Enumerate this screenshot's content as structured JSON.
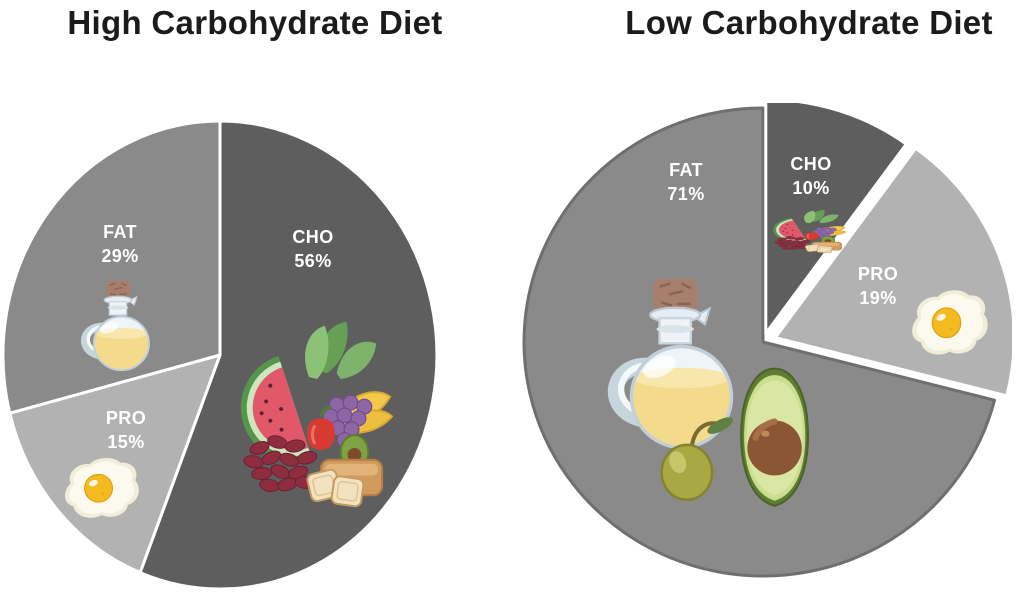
{
  "figure_title": "High vs Low Carbohydrate Diet macronutrient composition",
  "colors": {
    "cho_sector": "#5e5e5e",
    "fat_sector": "#8a8a8a",
    "pro_sector": "#b2b2b2",
    "right_fat_rim": "#6f6f6f",
    "slice_label_text": "#ffffff",
    "title_text": "#1b1b1b",
    "background": "#ffffff"
  },
  "icons": {
    "oil_bottle": "oil-bottle-icon",
    "fried_egg": "fried-egg-icon",
    "fruits": "fruits-vegetables-bread-icon",
    "fats": "oil-olive-avocado-icon"
  },
  "chart_data": [
    {
      "type": "pie",
      "title": "High Carbohydrate Diet",
      "direction": "clockwise",
      "start_angle_deg": 0,
      "legend": "none",
      "slices": [
        {
          "label": "CHO",
          "value": 56,
          "pct": "56%",
          "color": "#5e5e5e",
          "icon": "fruits-vegetables-bread-icon"
        },
        {
          "label": "PRO",
          "value": 15,
          "pct": "15%",
          "color": "#b2b2b2",
          "icon": "fried-egg-icon"
        },
        {
          "label": "FAT",
          "value": 29,
          "pct": "29%",
          "color": "#8a8a8a",
          "icon": "oil-bottle-icon"
        }
      ]
    },
    {
      "type": "pie",
      "title": "Low Carbohydrate Diet",
      "direction": "clockwise",
      "start_angle_deg": 0,
      "legend": "none",
      "slices": [
        {
          "label": "CHO",
          "value": 10,
          "pct": "10%",
          "color": "#5e5e5e",
          "icon": "fruits-vegetables-bread-icon"
        },
        {
          "label": "PRO",
          "value": 19,
          "pct": "19%",
          "color": "#b2b2b2",
          "icon": "fried-egg-icon"
        },
        {
          "label": "FAT",
          "value": 71,
          "pct": "71%",
          "color": "#8a8a8a",
          "icon": "oil-olive-avocado-icon"
        }
      ]
    }
  ]
}
